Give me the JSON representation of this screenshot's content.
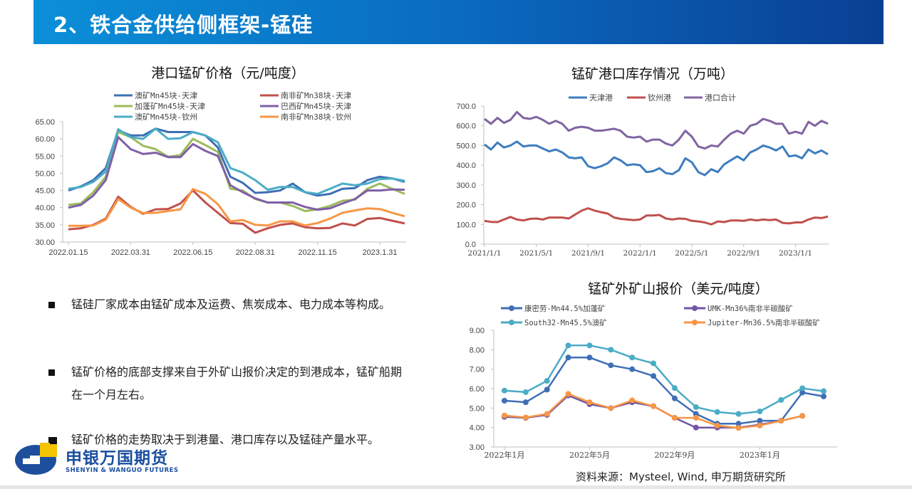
{
  "header": {
    "title": "2、铁合金供给侧框架-锰硅"
  },
  "bullets": [
    "锰硅厂家成本由锰矿成本及运费、焦炭成本、电力成本等构成。",
    "锰矿价格的底部支撑来自于外矿山报价决定的到港成本，锰矿船期在一个月左右。",
    "锰矿价格的走势取决于到港量、港口库存以及锰硅产量水平。"
  ],
  "source": "资料来源：Mysteel, Wind, 申万期货研究所",
  "logo": {
    "name_cn": "申银万国期货",
    "name_en": "SHENYIN & WANGUO FUTURES"
  },
  "chart_data": [
    {
      "type": "line",
      "title": "港口锰矿价格（元/吨度）",
      "ylim": [
        30,
        65
      ],
      "yticks": [
        "30.00",
        "35.00",
        "40.00",
        "45.00",
        "50.00",
        "55.00",
        "60.00",
        "65.00"
      ],
      "xtick_labels": [
        "2022.01.15",
        "2022.03.31",
        "2022.06.15",
        "2022.08.31",
        "2022.11.15",
        "2023.1.31"
      ],
      "xtick_every": 5,
      "x": [
        "2022.01.15",
        "2022.01.31",
        "2022.02.15",
        "2022.02.28",
        "2022.03.15",
        "2022.03.31",
        "2022.04.15",
        "2022.04.30",
        "2022.05.15",
        "2022.05.31",
        "2022.06.15",
        "2022.06.30",
        "2022.07.15",
        "2022.07.31",
        "2022.08.15",
        "2022.08.31",
        "2022.09.15",
        "2022.09.30",
        "2022.10.15",
        "2022.10.31",
        "2022.11.15",
        "2022.11.30",
        "2022.12.15",
        "2022.12.31",
        "2023.01.15",
        "2023.01.31",
        "2023.02.15",
        "2023.02.28"
      ],
      "legend": "top",
      "grid": false,
      "series": [
        {
          "name": "澳矿Mn45块-天津",
          "color": "#3d6fb4",
          "values": [
            45.0,
            46.2,
            48,
            51.5,
            62.5,
            61,
            61,
            63,
            62,
            62,
            62,
            61,
            57.5,
            49,
            47.2,
            44.3,
            44.5,
            45,
            47,
            44.5,
            43.5,
            44,
            45.5,
            45.7,
            48,
            49,
            48.5,
            47.5
          ]
        },
        {
          "name": "南非矿Mn38块-天津",
          "color": "#c0504d",
          "values": [
            33.7,
            34,
            35,
            36.8,
            43.2,
            40.2,
            38.2,
            39.5,
            39.6,
            41.2,
            45,
            41.5,
            38.5,
            35.5,
            35.3,
            32.7,
            34,
            35,
            35.4,
            34.3,
            34,
            34.1,
            35.4,
            34.8,
            36.7,
            37,
            36.2,
            35.4
          ]
        },
        {
          "name": "加蓬矿Mn45块-天津",
          "color": "#9bbb59",
          "values": [
            40.8,
            41.2,
            44.5,
            49,
            62,
            60.5,
            58,
            57,
            54.8,
            55.3,
            60,
            58.2,
            56.2,
            45.5,
            45,
            42.5,
            41.5,
            41.5,
            40.5,
            39,
            39.5,
            40.5,
            42,
            42.3,
            45.5,
            47,
            45.5,
            44
          ]
        },
        {
          "name": "巴西矿Mn45块-天津",
          "color": "#7f5fa8",
          "values": [
            40,
            40.8,
            43.5,
            48,
            60.5,
            57,
            55.6,
            56,
            54.7,
            54.7,
            58.5,
            56.5,
            55,
            46.5,
            44.5,
            42.7,
            41.5,
            41.5,
            41.5,
            40.2,
            39.4,
            39.8,
            41.2,
            42.5,
            45,
            45,
            45.3,
            45.2
          ]
        },
        {
          "name": "澳矿Mn45块-钦州",
          "color": "#4bacc6",
          "values": [
            45.5,
            46,
            47.5,
            50.5,
            62.8,
            60.5,
            60,
            63,
            60,
            60.2,
            62,
            61,
            59,
            51.5,
            50.2,
            48,
            45.2,
            46,
            46,
            44.5,
            44,
            45.5,
            47,
            46.5,
            47,
            48.3,
            48.5,
            47.8
          ]
        },
        {
          "name": "南非矿Mn38块-钦州",
          "color": "#f79646",
          "values": [
            34.7,
            34.7,
            34.8,
            36.5,
            42.5,
            40,
            38.4,
            38.5,
            39,
            39.5,
            45.4,
            44,
            41,
            36,
            36.4,
            35,
            34.8,
            36,
            36,
            34.8,
            35.5,
            36.8,
            38.5,
            39.2,
            39.8,
            39.6,
            38.5,
            37.5
          ]
        }
      ]
    },
    {
      "type": "line",
      "title": "锰矿港口库存情况（万吨）",
      "ylim": [
        0,
        700
      ],
      "yticks": [
        "0.0",
        "100.0",
        "200.0",
        "300.0",
        "400.0",
        "500.0",
        "600.0",
        "700.0"
      ],
      "xtick_labels": [
        "2021/1/1",
        "2021/5/1",
        "2021/9/1",
        "2022/1/1",
        "2022/5/1",
        "2022/9/1",
        "2023/1/1"
      ],
      "xtick_every": 8,
      "x": [
        "2021/1/1",
        "2021/1/15",
        "2021/2/1",
        "2021/2/15",
        "2021/3/1",
        "2021/3/15",
        "2021/4/1",
        "2021/4/15",
        "2021/5/1",
        "2021/5/15",
        "2021/6/1",
        "2021/6/15",
        "2021/7/1",
        "2021/7/15",
        "2021/8/1",
        "2021/8/15",
        "2021/9/1",
        "2021/9/15",
        "2021/10/1",
        "2021/10/15",
        "2021/11/1",
        "2021/11/15",
        "2021/12/1",
        "2021/12/15",
        "2022/1/1",
        "2022/1/15",
        "2022/2/1",
        "2022/2/15",
        "2022/3/1",
        "2022/3/15",
        "2022/4/1",
        "2022/4/15",
        "2022/5/1",
        "2022/5/15",
        "2022/6/1",
        "2022/6/15",
        "2022/7/1",
        "2022/7/15",
        "2022/8/1",
        "2022/8/15",
        "2022/9/1",
        "2022/9/15",
        "2022/10/1",
        "2022/10/15",
        "2022/11/1",
        "2022/11/15",
        "2022/12/1",
        "2022/12/15",
        "2023/1/1",
        "2023/1/15",
        "2023/2/1",
        "2023/2/15",
        "2023/3/1",
        "2023/3/15"
      ],
      "legend": "top",
      "grid": false,
      "series": [
        {
          "name": "天津港",
          "color": "#3d7dc0",
          "values": [
            505,
            480,
            515,
            490,
            500,
            520,
            495,
            500,
            500,
            485,
            470,
            480,
            465,
            440,
            435,
            440,
            395,
            385,
            395,
            410,
            440,
            425,
            400,
            405,
            400,
            365,
            370,
            385,
            360,
            355,
            375,
            435,
            415,
            365,
            350,
            380,
            365,
            405,
            425,
            445,
            425,
            465,
            480,
            500,
            490,
            475,
            495,
            445,
            450,
            435,
            480,
            460,
            475,
            455
          ]
        },
        {
          "name": "钦州港",
          "color": "#c0504d",
          "values": [
            118,
            113,
            112,
            125,
            138,
            125,
            120,
            128,
            130,
            125,
            135,
            135,
            135,
            130,
            150,
            170,
            182,
            170,
            162,
            155,
            135,
            128,
            125,
            122,
            125,
            145,
            145,
            148,
            130,
            125,
            130,
            128,
            118,
            115,
            110,
            100,
            115,
            112,
            120,
            120,
            118,
            125,
            120,
            125,
            122,
            125,
            108,
            105,
            110,
            110,
            125,
            135,
            132,
            140
          ]
        },
        {
          "name": "港口合计",
          "color": "#8064a2",
          "values": [
            635,
            610,
            640,
            615,
            630,
            670,
            640,
            635,
            645,
            630,
            610,
            625,
            610,
            575,
            590,
            595,
            590,
            575,
            575,
            580,
            585,
            575,
            545,
            540,
            545,
            520,
            530,
            530,
            510,
            500,
            530,
            575,
            545,
            495,
            485,
            500,
            495,
            530,
            560,
            575,
            560,
            600,
            610,
            635,
            625,
            610,
            610,
            560,
            570,
            560,
            620,
            600,
            625,
            610
          ]
        }
      ]
    },
    {
      "type": "line",
      "title": "锰矿外矿山报价（美元/吨度）",
      "ylim": [
        3,
        9
      ],
      "yticks": [
        "3.00",
        "4.00",
        "5.00",
        "6.00",
        "7.00",
        "8.00",
        "9.00"
      ],
      "xtick_labels": [
        "2022年1月",
        "2022年5月",
        "2022年9月",
        "2023年1月"
      ],
      "xtick_every": 4,
      "x": [
        "2022年1月",
        "2022年2月",
        "2022年3月",
        "2022年4月",
        "2022年5月",
        "2022年6月",
        "2022年7月",
        "2022年8月",
        "2022年9月",
        "2022年10月",
        "2022年11月",
        "2022年12月",
        "2023年1月",
        "2023年2月",
        "2023年3月",
        "2023年4月"
      ],
      "legend": "top",
      "grid": false,
      "markers": true,
      "series": [
        {
          "name": "康密劳-Mn44.5%加蓬矿",
          "color": "#3f6fb5",
          "values": [
            5.38,
            5.3,
            5.95,
            7.6,
            7.6,
            7.2,
            7.0,
            6.65,
            5.5,
            4.7,
            4.2,
            4.2,
            4.35,
            4.35,
            5.8,
            5.6
          ]
        },
        {
          "name": "UMK-Mn36%南非半碳酸矿",
          "color": "#7056a3",
          "values": [
            4.55,
            4.5,
            4.65,
            5.65,
            5.2,
            5.0,
            5.3,
            5.1,
            4.5,
            4.0,
            4.0,
            4.0,
            4.15,
            4.35,
            4.6,
            null
          ]
        },
        {
          "name": "South32-Mn45.5%澳矿",
          "color": "#4bacc6",
          "values": [
            5.9,
            5.82,
            6.4,
            8.22,
            8.22,
            8.0,
            7.6,
            7.3,
            6.03,
            5.05,
            4.8,
            4.7,
            4.83,
            5.42,
            6.02,
            5.87
          ]
        },
        {
          "name": "Jupiter-Mn36.5%南非半碳酸矿",
          "color": "#f79646",
          "values": [
            4.62,
            4.52,
            4.7,
            5.73,
            5.3,
            5.0,
            5.4,
            5.1,
            4.5,
            4.5,
            4.1,
            3.98,
            4.1,
            4.35,
            4.6,
            null
          ]
        }
      ]
    }
  ]
}
